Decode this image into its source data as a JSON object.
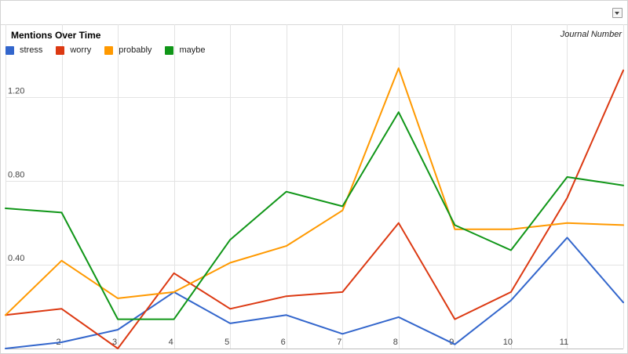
{
  "chart_data": {
    "type": "line",
    "title": "Mentions Over Time",
    "xlabel": "Journal Number",
    "ylabel": "",
    "x": [
      1,
      2,
      3,
      4,
      5,
      6,
      7,
      8,
      9,
      10,
      11,
      12
    ],
    "x_tick_labels": [
      "2",
      "3",
      "4",
      "5",
      "6",
      "7",
      "8",
      "9",
      "10",
      "11"
    ],
    "y_tick_labels": [
      "0.40",
      "0.80",
      "1.20"
    ],
    "ylim": [
      0.0,
      1.55
    ],
    "grid": true,
    "legend_position": "top-left",
    "series": [
      {
        "name": "stress",
        "color": "#3366cc",
        "values": [
          0.0,
          0.03,
          0.09,
          0.27,
          0.12,
          0.16,
          0.07,
          0.15,
          0.02,
          0.23,
          0.53,
          0.22
        ]
      },
      {
        "name": "worry",
        "color": "#dc3912",
        "values": [
          0.16,
          0.19,
          0.0,
          0.36,
          0.19,
          0.25,
          0.27,
          0.6,
          0.14,
          0.27,
          0.72,
          1.33
        ]
      },
      {
        "name": "probably",
        "color": "#ff9900",
        "values": [
          0.16,
          0.42,
          0.24,
          0.27,
          0.41,
          0.49,
          0.66,
          1.34,
          0.57,
          0.57,
          0.6,
          0.59
        ]
      },
      {
        "name": "maybe",
        "color": "#109618",
        "values": [
          0.67,
          0.65,
          0.14,
          0.14,
          0.52,
          0.75,
          0.68,
          1.13,
          0.59,
          0.47,
          0.82,
          0.78
        ]
      }
    ]
  },
  "toolbar": {
    "menu_icon": "chevron-down-icon"
  }
}
